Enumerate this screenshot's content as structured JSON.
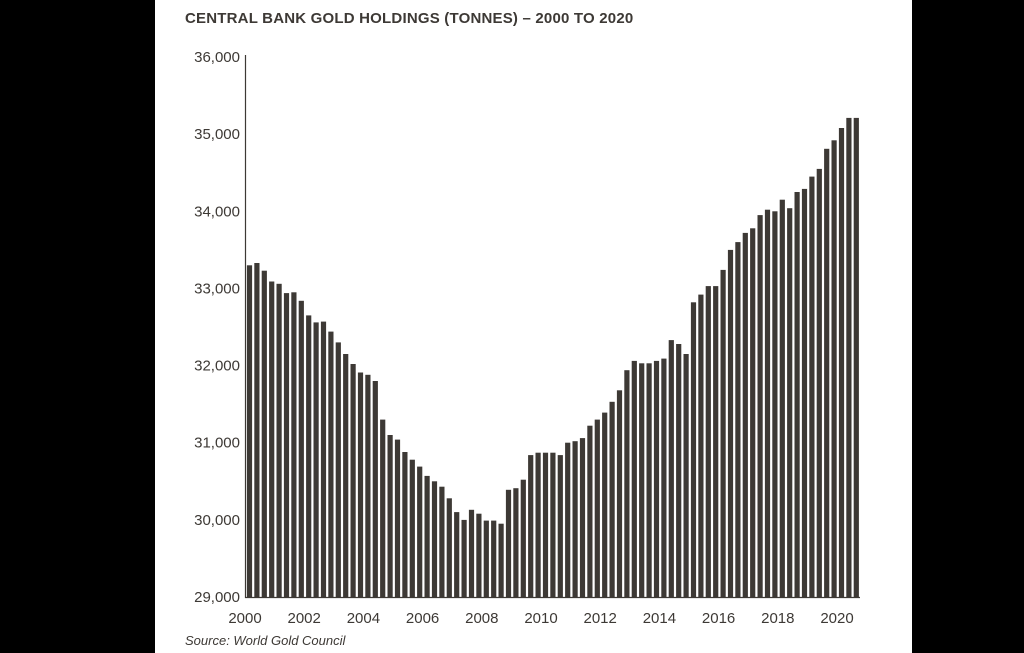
{
  "chart_data": {
    "type": "bar",
    "title": "CENTRAL BANK GOLD HOLDINGS (TONNES) – 2000 TO 2020",
    "source": "Source: World Gold Council",
    "xlabel": "",
    "ylabel": "",
    "ylim": [
      29000,
      36000
    ],
    "yticks": [
      "29,000",
      "30,000",
      "31,000",
      "32,000",
      "33,000",
      "34,000",
      "35,000",
      "36,000"
    ],
    "xticks": [
      "2000",
      "2002",
      "2004",
      "2006",
      "2008",
      "2010",
      "2012",
      "2014",
      "2016",
      "2018",
      "2020"
    ],
    "x_start": "2000-Q1",
    "frequency": "quarterly",
    "grid": false,
    "bar_color": "#3d3935",
    "values": [
      33300,
      33330,
      33230,
      33090,
      33060,
      32940,
      32950,
      32840,
      32650,
      32560,
      32570,
      32440,
      32300,
      32150,
      32020,
      31910,
      31880,
      31800,
      31300,
      31100,
      31040,
      30880,
      30780,
      30690,
      30570,
      30500,
      30430,
      30280,
      30100,
      30000,
      30130,
      30080,
      29990,
      29990,
      29950,
      30390,
      30410,
      30520,
      30840,
      30870,
      30870,
      30870,
      30840,
      31000,
      31020,
      31060,
      31220,
      31300,
      31390,
      31530,
      31680,
      31940,
      32060,
      32030,
      32030,
      32060,
      32090,
      32330,
      32280,
      32150,
      32820,
      32920,
      33030,
      33030,
      33240,
      33500,
      33600,
      33720,
      33780,
      33950,
      34020,
      34000,
      34150,
      34040,
      34250,
      34290,
      34450,
      34550,
      34810,
      34920,
      35080,
      35210,
      35210
    ]
  }
}
